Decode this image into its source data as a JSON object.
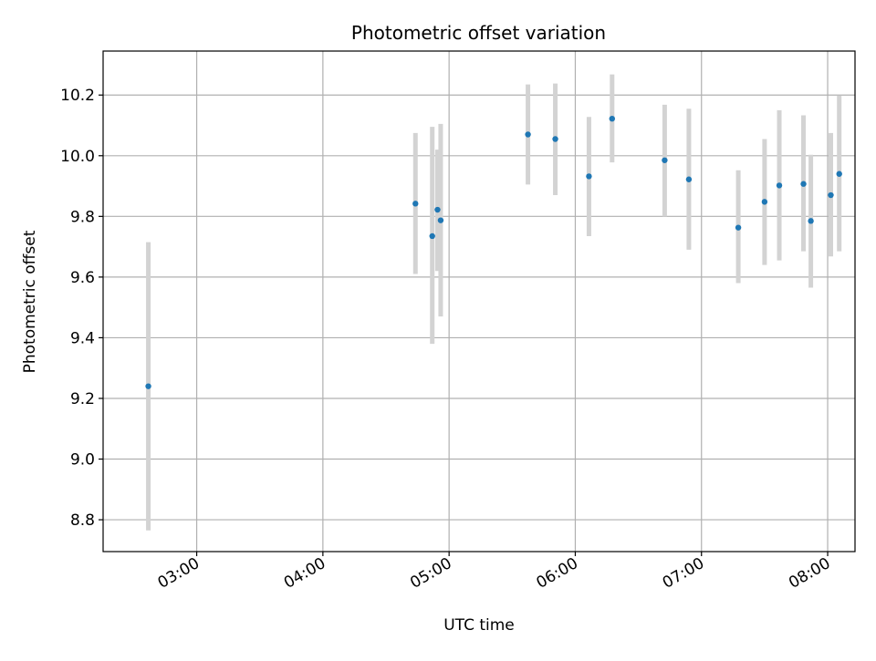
{
  "chart_data": {
    "type": "scatter",
    "title": "Photometric offset variation",
    "xlabel": "UTC time",
    "ylabel": "Photometric offset",
    "x_tick_labels": [
      "03:00",
      "04:00",
      "05:00",
      "06:00",
      "07:00",
      "08:00"
    ],
    "x_tick_minutes": [
      180,
      240,
      300,
      360,
      420,
      480
    ],
    "xlim_minutes": [
      135.5,
      493
    ],
    "y_ticks": [
      8.8,
      9.0,
      9.2,
      9.4,
      9.6,
      9.8,
      10.0,
      10.2
    ],
    "y_tick_labels": [
      "8.8",
      "9.0",
      "9.2",
      "9.4",
      "9.6",
      "9.8",
      "10.0",
      "10.2"
    ],
    "ylim": [
      8.695,
      10.345
    ],
    "grid": true,
    "marker_color": "#1f77b4",
    "errorbar_color": "#d3d3d3",
    "points": [
      {
        "t": 157.0,
        "y": 9.24,
        "lo": 8.765,
        "hi": 9.715
      },
      {
        "t": 284.0,
        "y": 9.842,
        "lo": 9.61,
        "hi": 10.075
      },
      {
        "t": 292.0,
        "y": 9.735,
        "lo": 9.38,
        "hi": 10.095
      },
      {
        "t": 294.5,
        "y": 9.822,
        "lo": 9.62,
        "hi": 10.02
      },
      {
        "t": 296.0,
        "y": 9.787,
        "lo": 9.47,
        "hi": 10.105
      },
      {
        "t": 337.5,
        "y": 10.07,
        "lo": 9.905,
        "hi": 10.235
      },
      {
        "t": 350.5,
        "y": 10.055,
        "lo": 9.87,
        "hi": 10.238
      },
      {
        "t": 366.5,
        "y": 9.932,
        "lo": 9.735,
        "hi": 10.128
      },
      {
        "t": 377.5,
        "y": 10.122,
        "lo": 9.978,
        "hi": 10.268
      },
      {
        "t": 402.5,
        "y": 9.985,
        "lo": 9.8,
        "hi": 10.168
      },
      {
        "t": 414.0,
        "y": 9.922,
        "lo": 9.69,
        "hi": 10.155
      },
      {
        "t": 437.5,
        "y": 9.763,
        "lo": 9.58,
        "hi": 9.952
      },
      {
        "t": 450.0,
        "y": 9.848,
        "lo": 9.64,
        "hi": 10.055
      },
      {
        "t": 457.0,
        "y": 9.902,
        "lo": 9.655,
        "hi": 10.15
      },
      {
        "t": 468.5,
        "y": 9.907,
        "lo": 9.685,
        "hi": 10.133
      },
      {
        "t": 472.0,
        "y": 9.785,
        "lo": 9.565,
        "hi": 10.003
      },
      {
        "t": 481.5,
        "y": 9.87,
        "lo": 9.668,
        "hi": 10.075
      },
      {
        "t": 485.5,
        "y": 9.94,
        "lo": 9.685,
        "hi": 10.198
      }
    ]
  }
}
